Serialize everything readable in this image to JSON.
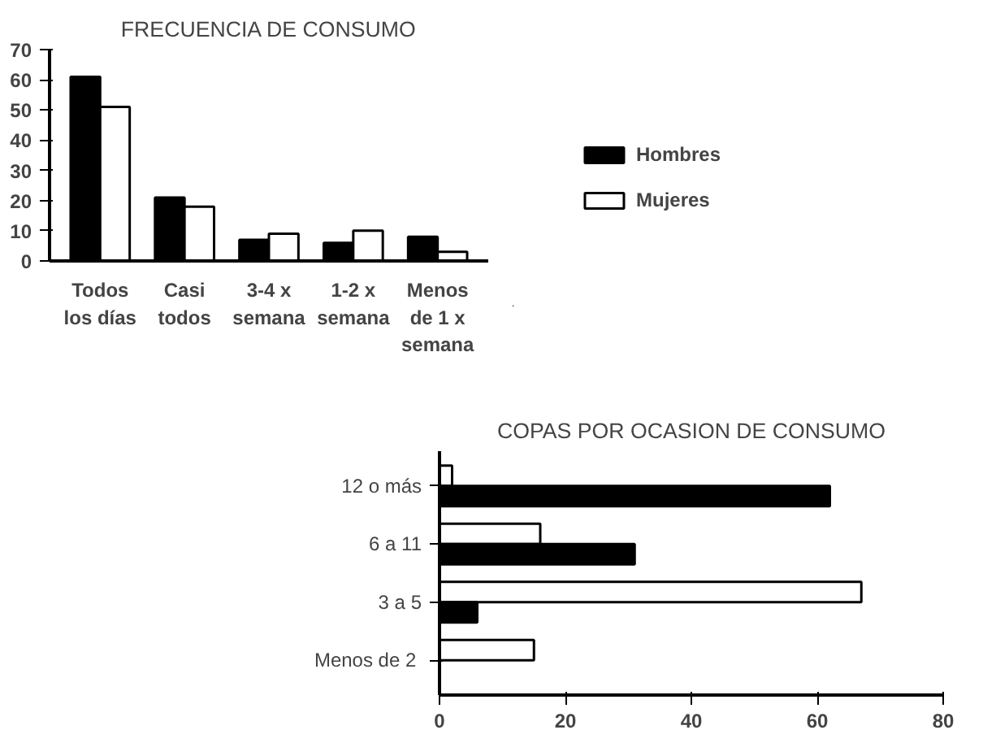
{
  "chart_data": [
    {
      "type": "bar",
      "title": "FRECUENCIA DE CONSUMO",
      "categories": [
        "Todos\nlos días",
        "Casi\ntodos",
        "3-4 x\nsemana",
        "1-2 x\nsemana",
        "Menos\nde 1 x\nsemana"
      ],
      "series": [
        {
          "name": "Hombres",
          "color": "#000000",
          "values": [
            61,
            21,
            7,
            6,
            8
          ]
        },
        {
          "name": "Mujeres",
          "color": "#ffffff",
          "values": [
            51,
            18,
            9,
            10,
            3
          ]
        }
      ],
      "ylim": [
        0,
        70
      ],
      "yticks": [
        0,
        10,
        20,
        30,
        40,
        50,
        60,
        70
      ],
      "grid": false,
      "legend": "right"
    },
    {
      "type": "bar",
      "orientation": "horizontal",
      "title": "COPAS POR OCASION DE CONSUMO",
      "categories": [
        "12 o más",
        "6 a 11",
        "3 a 5",
        "Menos  de 2"
      ],
      "series": [
        {
          "color": "#ffffff",
          "values": [
            2,
            16,
            67,
            15
          ]
        },
        {
          "color": "#000000",
          "values": [
            62,
            31,
            6,
            0
          ]
        }
      ],
      "xlim": [
        0,
        80
      ],
      "xticks": [
        0,
        20,
        40,
        60,
        80
      ],
      "grid": false
    }
  ]
}
